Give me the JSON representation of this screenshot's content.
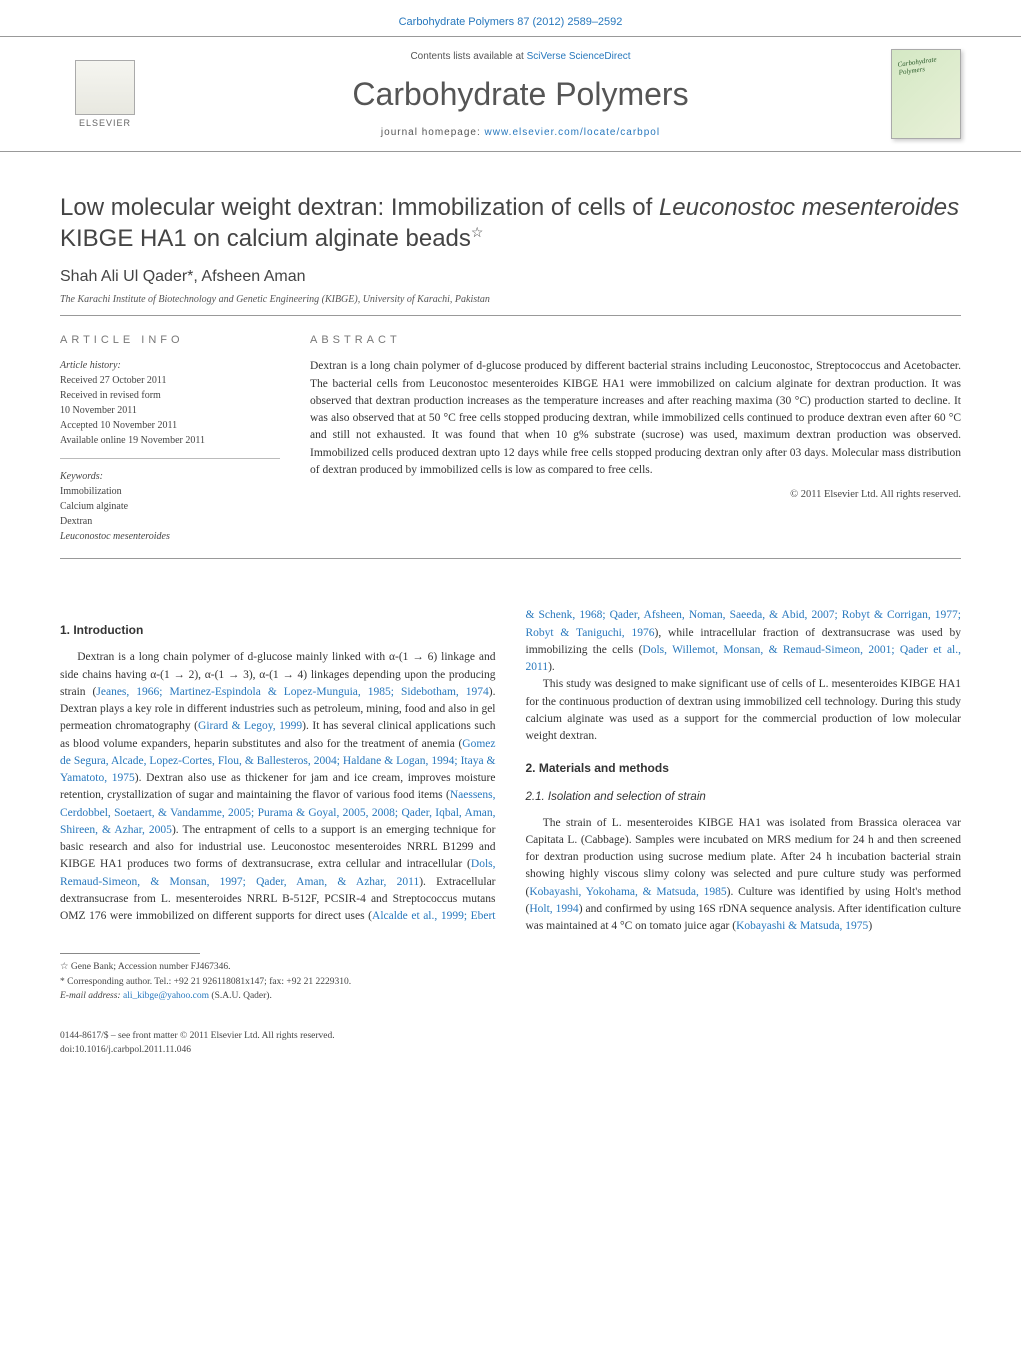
{
  "header": {
    "citation": "Carbohydrate Polymers 87 (2012) 2589–2592",
    "contents_prefix": "Contents lists available at ",
    "contents_link": "SciVerse ScienceDirect",
    "journal_title": "Carbohydrate Polymers",
    "homepage_prefix": "journal homepage: ",
    "homepage_link": "www.elsevier.com/locate/carbpol",
    "publisher_name": "ELSEVIER"
  },
  "article": {
    "title_part1": "Low molecular weight dextran: Immobilization of cells of ",
    "title_species": "Leuconostoc mesenteroides",
    "title_part2": " KIBGE HA1 on calcium alginate beads",
    "star": "☆",
    "authors": "Shah Ali Ul Qader*, Afsheen Aman",
    "affiliation": "The Karachi Institute of Biotechnology and Genetic Engineering (KIBGE), University of Karachi, Pakistan"
  },
  "info": {
    "section_label": "article info",
    "history_label": "Article history:",
    "received": "Received 27 October 2011",
    "revised1": "Received in revised form",
    "revised2": "10 November 2011",
    "accepted": "Accepted 10 November 2011",
    "online": "Available online 19 November 2011",
    "keywords_label": "Keywords:",
    "kw1": "Immobilization",
    "kw2": "Calcium alginate",
    "kw3": "Dextran",
    "kw4": "Leuconostoc mesenteroides"
  },
  "abstract": {
    "section_label": "abstract",
    "text": "Dextran is a long chain polymer of d-glucose produced by different bacterial strains including Leuconostoc, Streptococcus and Acetobacter. The bacterial cells from Leuconostoc mesenteroides KIBGE HA1 were immobilized on calcium alginate for dextran production. It was observed that dextran production increases as the temperature increases and after reaching maxima (30 °C) production started to decline. It was also observed that at 50 °C free cells stopped producing dextran, while immobilized cells continued to produce dextran even after 60 °C and still not exhausted. It was found that when 10 g% substrate (sucrose) was used, maximum dextran production was observed. Immobilized cells produced dextran upto 12 days while free cells stopped producing dextran only after 03 days. Molecular mass distribution of dextran produced by immobilized cells is low as compared to free cells.",
    "copyright": "© 2011 Elsevier Ltd. All rights reserved."
  },
  "body": {
    "h_intro": "1. Introduction",
    "intro_p1a": "Dextran is a long chain polymer of d-glucose mainly linked with α-(1 → 6) linkage and side chains having α-(1 → 2), α-(1 → 3), α-(1 → 4) linkages depending upon the producing strain (",
    "intro_c1": "Jeanes, 1966; Martinez-Espindola & Lopez-Munguia, 1985; Sidebotham, 1974",
    "intro_p1b": "). Dextran plays a key role in different industries such as petroleum, mining, food and also in gel permeation chromatography (",
    "intro_c2": "Girard & Legoy, 1999",
    "intro_p1c": "). It has several clinical applications such as blood volume expanders, heparin substitutes and also for the treatment of anemia (",
    "intro_c3": "Gomez de Segura, Alcade, Lopez-Cortes, Flou, & Ballesteros, 2004; Haldane & Logan, 1994; Itaya & Yamatoto, 1975",
    "intro_p1d": "). Dextran also use as thickener for jam and ice cream, improves moisture retention, crystallization of sugar and maintaining the flavor of various food items (",
    "intro_c4": "Naessens, Cerdobbel, Soetaert, & Vandamme, 2005; Purama & Goyal, 2005, 2008; Qader, Iqbal, Aman, Shireen, & Azhar, 2005",
    "intro_p1e": "). The entrapment of cells to a support is an emerging technique for basic research and also for industrial use. Leuconostoc mesenteroides NRRL B1299 and KIBGE HA1 produces two forms of dextransucrase, extra cellular and intracellular (",
    "intro_c5": "Dols, Remaud-Simeon, & Monsan, 1997; Qader, Aman, & Azhar, 2011",
    "intro_p1f": "). Extracellular dextransucrase from L. mesenteroides NRRL B-512F, PCSIR-4 and Streptococcus mutans OMZ 176 were ",
    "intro_p2a": "immobilized on different supports for direct uses (",
    "intro_c6": "Alcalde et al., 1999; Ebert & Schenk, 1968; Qader, Afsheen, Noman, Saeeda, & Abid, 2007; Robyt & Corrigan, 1977; Robyt & Taniguchi, 1976",
    "intro_p2b": "), while intracellular fraction of dextransucrase was used by immobilizing the cells (",
    "intro_c7": "Dols, Willemot, Monsan, & Remaud-Simeon, 2001; Qader et al., 2011",
    "intro_p2c": ").",
    "intro_p3": "This study was designed to make significant use of cells of L. mesenteroides KIBGE HA1 for the continuous production of dextran using immobilized cell technology. During this study calcium alginate was used as a support for the commercial production of low molecular weight dextran.",
    "h_mm": "2. Materials and methods",
    "h_iso": "2.1. Isolation and selection of strain",
    "iso_p1a": "The strain of L. mesenteroides KIBGE HA1 was isolated from Brassica oleracea var Capitata L. (Cabbage). Samples were incubated on MRS medium for 24 h and then screened for dextran production using sucrose medium plate. After 24 h incubation bacterial strain showing highly viscous slimy colony was selected and pure culture study was performed (",
    "iso_c1": "Kobayashi, Yokohama, & Matsuda, 1985",
    "iso_p1b": "). Culture was identified by using Holt's method (",
    "iso_c2": "Holt, 1994",
    "iso_p1c": ") and confirmed by using 16S rDNA sequence analysis. After identification culture was maintained at 4 °C on tomato juice agar (",
    "iso_c3": "Kobayashi & Matsuda, 1975",
    "iso_p1d": ")"
  },
  "footnotes": {
    "gene_bank": "☆ Gene Bank; Accession number FJ467346.",
    "corresponding": "* Corresponding author. Tel.: +92 21 926118081x147; fax: +92 21 2229310.",
    "email_label": "E-mail address: ",
    "email": "ali_kibge@yahoo.com",
    "email_suffix": " (S.A.U. Qader)."
  },
  "footer": {
    "line1": "0144-8617/$ – see front matter © 2011 Elsevier Ltd. All rights reserved.",
    "line2": "doi:10.1016/j.carbpol.2011.11.046"
  },
  "colors": {
    "link": "#2878bd",
    "text": "#333333",
    "muted": "#777777",
    "rule": "#999999"
  }
}
